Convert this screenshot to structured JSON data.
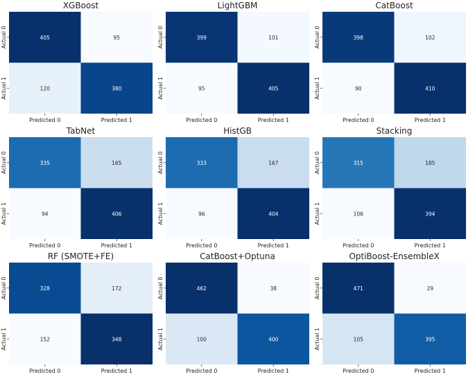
{
  "chart_data": {
    "type": "heatmap",
    "colormap": "Blues",
    "grid": false,
    "legend": "none",
    "row_labels": [
      "Actual 0",
      "Actual 1"
    ],
    "col_labels": [
      "Predicted 0",
      "Predicted 1"
    ],
    "panels": [
      {
        "title": "XGBoost",
        "matrix": [
          [
            405,
            95
          ],
          [
            120,
            380
          ]
        ]
      },
      {
        "title": "LightGBM",
        "matrix": [
          [
            399,
            101
          ],
          [
            95,
            405
          ]
        ]
      },
      {
        "title": "CatBoost",
        "matrix": [
          [
            398,
            102
          ],
          [
            90,
            410
          ]
        ]
      },
      {
        "title": "TabNet",
        "matrix": [
          [
            335,
            165
          ],
          [
            94,
            406
          ]
        ]
      },
      {
        "title": "HistGB",
        "matrix": [
          [
            333,
            167
          ],
          [
            96,
            404
          ]
        ]
      },
      {
        "title": "Stacking",
        "matrix": [
          [
            315,
            185
          ],
          [
            106,
            394
          ]
        ]
      },
      {
        "title": "RF (SMOTE+FE)",
        "matrix": [
          [
            328,
            172
          ],
          [
            152,
            348
          ]
        ]
      },
      {
        "title": "CatBoost+Optuna",
        "matrix": [
          [
            462,
            38
          ],
          [
            100,
            400
          ]
        ]
      },
      {
        "title": "OptiBoost-EnsembleX",
        "matrix": [
          [
            471,
            29
          ],
          [
            105,
            395
          ]
        ]
      }
    ]
  }
}
